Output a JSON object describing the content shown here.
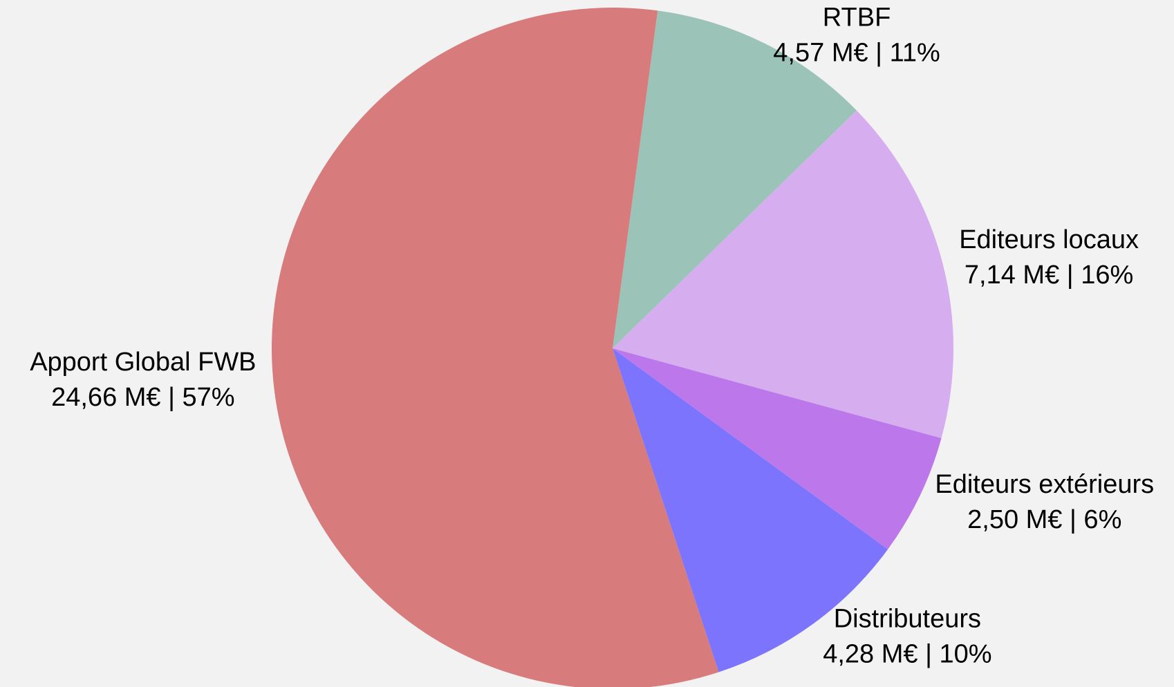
{
  "chart_data": {
    "type": "pie",
    "categories": [
      "RTBF",
      "Editeurs locaux",
      "Editeurs extérieurs",
      "Distributeurs",
      "Apport Global FWB"
    ],
    "values": [
      4.57,
      7.14,
      2.5,
      4.28,
      24.66
    ],
    "value_labels": [
      "4,57 M€ | 11%",
      "7,14 M€ | 16%",
      "2,50 M€ | 6%",
      "4,28 M€ | 10%",
      "24,66 M€ | 57%"
    ],
    "colors": [
      "#9cc3b8",
      "#d6aef0",
      "#bc78ea",
      "#7d74fe",
      "#d77b7c"
    ]
  }
}
